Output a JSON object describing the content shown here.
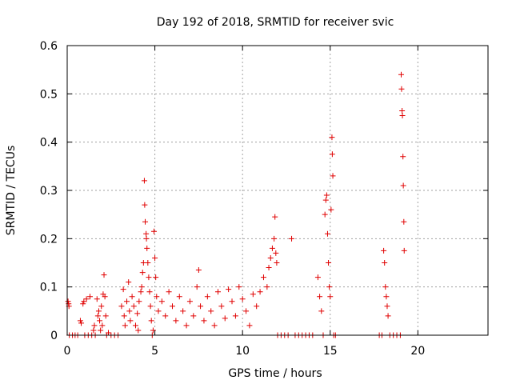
{
  "chart_data": {
    "type": "scatter",
    "title": "Day 192 of 2018, SRMTID for receiver svic",
    "xlabel": "GPS time / hours",
    "ylabel": "SRMTID / TECUs",
    "xlim": [
      0,
      24
    ],
    "ylim": [
      0,
      0.6
    ],
    "xticks": [
      0,
      5,
      10,
      15,
      20
    ],
    "yticks": [
      0,
      0.1,
      0.2,
      0.3,
      0.4,
      0.5,
      0.6
    ],
    "xtick_labels": [
      "0",
      "5",
      "10",
      "15",
      "20"
    ],
    "ytick_labels": [
      "0",
      "0.1",
      "0.2",
      "0.3",
      "0.4",
      "0.5",
      "0.6"
    ],
    "grid": true,
    "marker": "+",
    "series": [
      {
        "name": "SRMTID",
        "color": "#e00000",
        "points": [
          [
            0.05,
            0.07
          ],
          [
            0.08,
            0.065
          ],
          [
            0.1,
            0.06
          ],
          [
            0.12,
            0.0
          ],
          [
            0.3,
            0.0
          ],
          [
            0.45,
            0.0
          ],
          [
            0.6,
            0.0
          ],
          [
            0.75,
            0.03
          ],
          [
            0.8,
            0.025
          ],
          [
            0.9,
            0.065
          ],
          [
            0.95,
            0.07
          ],
          [
            1.0,
            0.0
          ],
          [
            1.1,
            0.075
          ],
          [
            1.2,
            0.0
          ],
          [
            1.3,
            0.08
          ],
          [
            1.4,
            0.0
          ],
          [
            1.5,
            0.01
          ],
          [
            1.55,
            0.02
          ],
          [
            1.6,
            0.0
          ],
          [
            1.7,
            0.075
          ],
          [
            1.75,
            0.04
          ],
          [
            1.8,
            0.05
          ],
          [
            1.85,
            0.03
          ],
          [
            1.9,
            0.01
          ],
          [
            1.95,
            0.06
          ],
          [
            2.0,
            0.02
          ],
          [
            2.05,
            0.085
          ],
          [
            2.1,
            0.125
          ],
          [
            2.15,
            0.08
          ],
          [
            2.2,
            0.04
          ],
          [
            2.25,
            0.0
          ],
          [
            2.35,
            0.005
          ],
          [
            2.5,
            0.0
          ],
          [
            2.7,
            0.0
          ],
          [
            2.9,
            0.0
          ],
          [
            3.1,
            0.06
          ],
          [
            3.2,
            0.095
          ],
          [
            3.25,
            0.04
          ],
          [
            3.3,
            0.02
          ],
          [
            3.4,
            0.07
          ],
          [
            3.5,
            0.11
          ],
          [
            3.55,
            0.05
          ],
          [
            3.6,
            0.03
          ],
          [
            3.7,
            0.08
          ],
          [
            3.8,
            0.06
          ],
          [
            3.9,
            0.02
          ],
          [
            4.0,
            0.045
          ],
          [
            4.05,
            0.01
          ],
          [
            4.1,
            0.07
          ],
          [
            4.2,
            0.09
          ],
          [
            4.25,
            0.1
          ],
          [
            4.3,
            0.13
          ],
          [
            4.35,
            0.15
          ],
          [
            4.4,
            0.32
          ],
          [
            4.42,
            0.27
          ],
          [
            4.45,
            0.235
          ],
          [
            4.5,
            0.21
          ],
          [
            4.52,
            0.2
          ],
          [
            4.55,
            0.18
          ],
          [
            4.6,
            0.15
          ],
          [
            4.65,
            0.12
          ],
          [
            4.7,
            0.09
          ],
          [
            4.75,
            0.06
          ],
          [
            4.8,
            0.03
          ],
          [
            4.85,
            0.0
          ],
          [
            4.9,
            0.01
          ],
          [
            4.95,
            0.215
          ],
          [
            5.0,
            0.16
          ],
          [
            5.05,
            0.12
          ],
          [
            5.1,
            0.08
          ],
          [
            5.2,
            0.05
          ],
          [
            5.4,
            0.07
          ],
          [
            5.6,
            0.04
          ],
          [
            5.8,
            0.09
          ],
          [
            6.0,
            0.06
          ],
          [
            6.2,
            0.03
          ],
          [
            6.4,
            0.08
          ],
          [
            6.6,
            0.05
          ],
          [
            6.8,
            0.02
          ],
          [
            7.0,
            0.07
          ],
          [
            7.2,
            0.04
          ],
          [
            7.4,
            0.1
          ],
          [
            7.5,
            0.135
          ],
          [
            7.6,
            0.06
          ],
          [
            7.8,
            0.03
          ],
          [
            8.0,
            0.08
          ],
          [
            8.2,
            0.05
          ],
          [
            8.4,
            0.02
          ],
          [
            8.6,
            0.09
          ],
          [
            8.8,
            0.06
          ],
          [
            9.0,
            0.035
          ],
          [
            9.2,
            0.095
          ],
          [
            9.4,
            0.07
          ],
          [
            9.6,
            0.04
          ],
          [
            9.8,
            0.1
          ],
          [
            10.0,
            0.075
          ],
          [
            10.2,
            0.05
          ],
          [
            10.4,
            0.02
          ],
          [
            10.6,
            0.085
          ],
          [
            10.8,
            0.06
          ],
          [
            11.0,
            0.09
          ],
          [
            11.2,
            0.12
          ],
          [
            11.4,
            0.1
          ],
          [
            11.5,
            0.14
          ],
          [
            11.6,
            0.16
          ],
          [
            11.7,
            0.18
          ],
          [
            11.8,
            0.2
          ],
          [
            11.85,
            0.245
          ],
          [
            11.9,
            0.17
          ],
          [
            11.95,
            0.15
          ],
          [
            12.0,
            0.0
          ],
          [
            12.2,
            0.0
          ],
          [
            12.4,
            0.0
          ],
          [
            12.6,
            0.0
          ],
          [
            12.8,
            0.2
          ],
          [
            13.0,
            0.0
          ],
          [
            13.2,
            0.0
          ],
          [
            13.4,
            0.0
          ],
          [
            13.6,
            0.0
          ],
          [
            13.8,
            0.0
          ],
          [
            14.0,
            0.0
          ],
          [
            14.3,
            0.12
          ],
          [
            14.4,
            0.08
          ],
          [
            14.5,
            0.05
          ],
          [
            14.6,
            0.0
          ],
          [
            14.7,
            0.25
          ],
          [
            14.75,
            0.28
          ],
          [
            14.8,
            0.29
          ],
          [
            14.85,
            0.21
          ],
          [
            14.9,
            0.15
          ],
          [
            14.95,
            0.1
          ],
          [
            15.0,
            0.08
          ],
          [
            15.05,
            0.26
          ],
          [
            15.1,
            0.41
          ],
          [
            15.12,
            0.375
          ],
          [
            15.15,
            0.33
          ],
          [
            15.2,
            0.0
          ],
          [
            15.3,
            0.0
          ],
          [
            17.8,
            0.0
          ],
          [
            17.95,
            0.0
          ],
          [
            18.05,
            0.175
          ],
          [
            18.1,
            0.15
          ],
          [
            18.15,
            0.1
          ],
          [
            18.2,
            0.08
          ],
          [
            18.25,
            0.06
          ],
          [
            18.3,
            0.04
          ],
          [
            18.4,
            0.0
          ],
          [
            18.6,
            0.0
          ],
          [
            18.8,
            0.0
          ],
          [
            19.0,
            0.0
          ],
          [
            19.05,
            0.54
          ],
          [
            19.07,
            0.51
          ],
          [
            19.1,
            0.465
          ],
          [
            19.12,
            0.455
          ],
          [
            19.15,
            0.37
          ],
          [
            19.17,
            0.31
          ],
          [
            19.2,
            0.235
          ],
          [
            19.22,
            0.175
          ]
        ]
      }
    ]
  }
}
